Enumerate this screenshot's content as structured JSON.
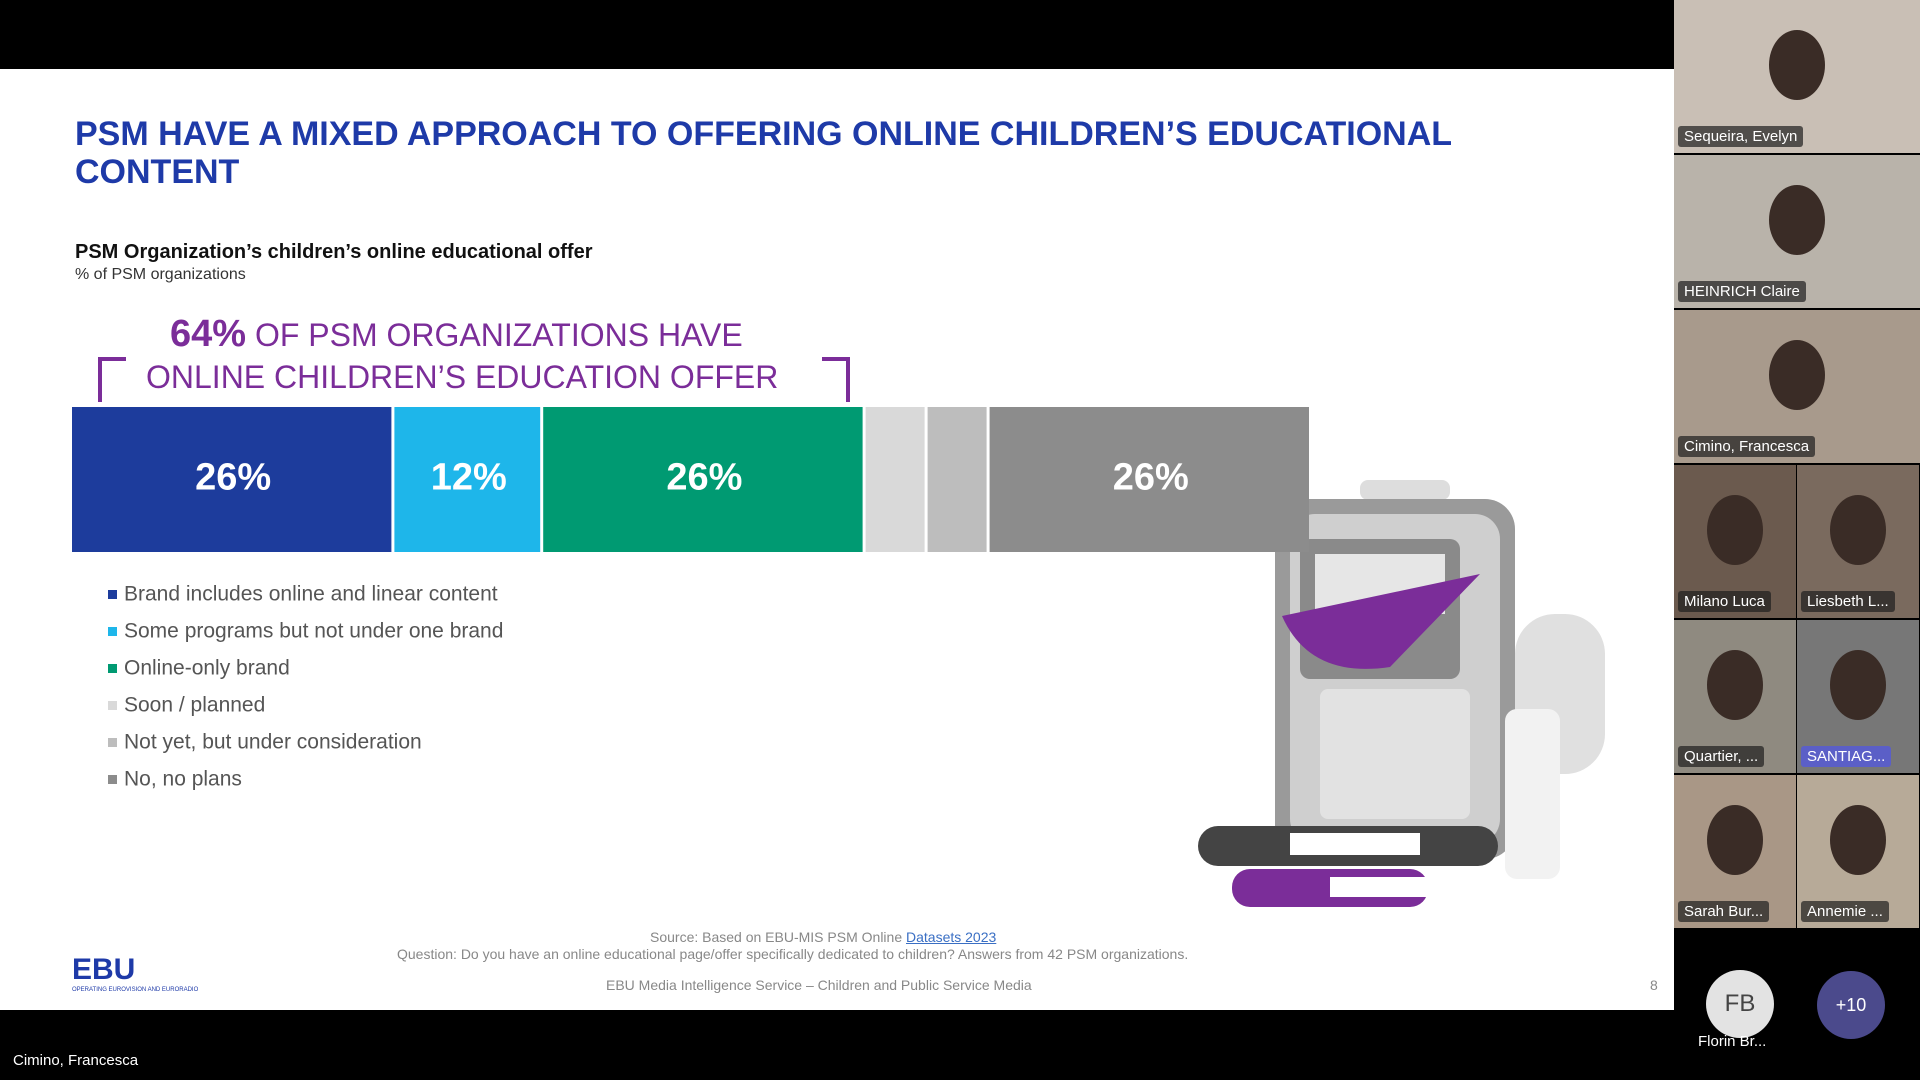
{
  "meeting": {
    "presenter": "Cimino, Francesca",
    "participants": [
      "Sequeira, Evelyn",
      "HEINRICH Claire",
      "Cimino, Francesca",
      "Milano Luca",
      "Liesbeth L...",
      "Quartier, ...",
      "SANTIAG...",
      "Sarah Bur...",
      "Annemie ..."
    ],
    "avatar": {
      "initials": "FB",
      "name": "Florin Br..."
    },
    "more": "+10"
  },
  "slide": {
    "title_lines": [
      "PSM HAVE A MIXED APPROACH TO OFFERING ONLINE CHILDREN’S EDUCATIONAL",
      "CONTENT"
    ],
    "highlight": {
      "figure": "64%",
      "line1": "OF PSM ORGANIZATIONS HAVE",
      "line2": "ONLINE CHILDREN’S EDUCATION OFFER"
    },
    "source_prefix": "Source: Based on EBU-MIS PSM Online",
    "source_link": "Datasets 2023",
    "question": "Question: Do you have an online educational page/offer specifically dedicated to children? Answers from 42 PSM organizations.",
    "footer": "EBU Media Intelligence Service – Children and Public Service Media",
    "logo": "EBU",
    "logo_tagline": "OPERATING EUROVISION AND EURORADIO",
    "page_number": "8"
  },
  "chart_data": {
    "type": "stacked-bar",
    "title": "PSM Organization’s children’s online educational offer",
    "subtitle": "% of PSM organizations",
    "series": [
      {
        "name": "Brand includes online and linear content",
        "color": "#1d3c9c",
        "values": [
          26
        ],
        "value_labels": [
          "26%"
        ]
      },
      {
        "name": "Some programs but not under one brand",
        "color": "#1eb6ea",
        "values": [
          12
        ],
        "value_labels": [
          "12%"
        ]
      },
      {
        "name": "Online-only brand",
        "color": "#009a72",
        "values": [
          26
        ],
        "value_labels": [
          "26%"
        ]
      },
      {
        "name": "Soon / planned",
        "color": "#d9d9d9",
        "values": [
          5
        ]
      },
      {
        "name": "Not yet, but under consideration",
        "color": "#bdbdbd",
        "values": [
          5
        ]
      },
      {
        "name": "No, no plans",
        "color": "#8c8c8c",
        "values": [
          26
        ],
        "value_labels": [
          "26%"
        ]
      }
    ]
  }
}
